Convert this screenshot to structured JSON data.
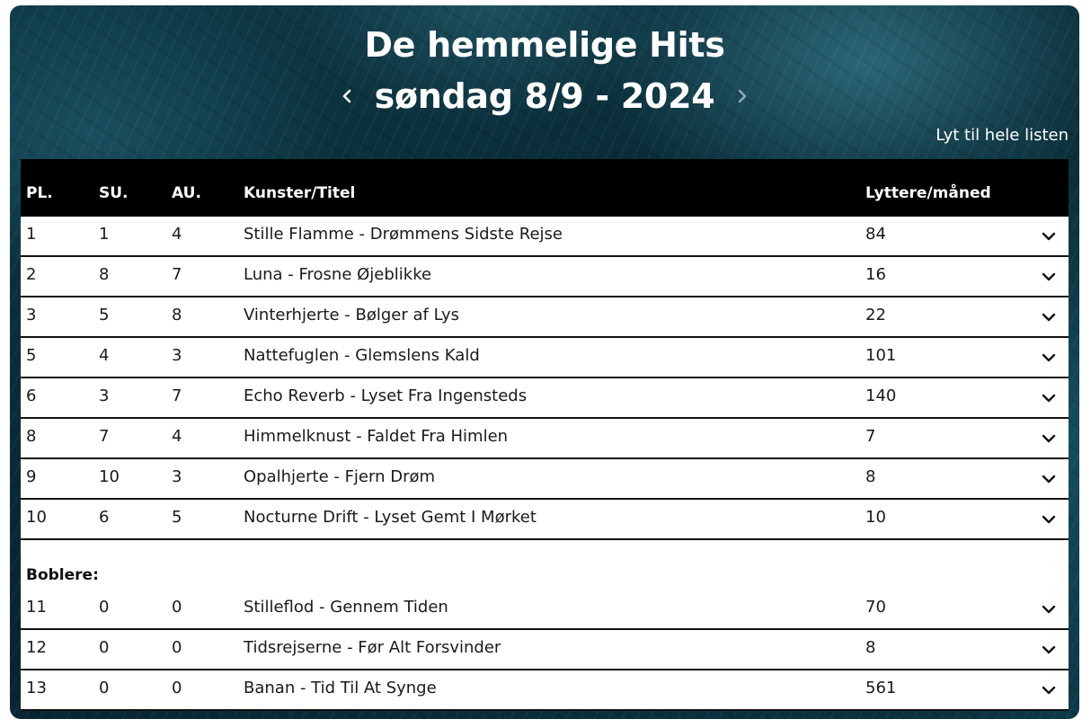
{
  "header": {
    "title": "De hemmelige Hits",
    "date": "søndag 8/9 - 2024",
    "listen_link": "Lyt til hele listen"
  },
  "colors": {
    "background_teal": "#0a2c38",
    "header_row": "#000000",
    "text": "#1a1a1a"
  },
  "icons": {
    "prev": "chevron-left-icon",
    "next": "chevron-right-icon",
    "expand": "chevron-down-icon"
  },
  "table": {
    "columns": {
      "pl": "PL.",
      "su": "SU.",
      "au": "AU.",
      "title": "Kunster/Titel",
      "listeners": "Lyttere/måned"
    },
    "rows": [
      {
        "pl": "1",
        "su": "1",
        "au": "4",
        "title": "Stille Flamme - Drømmens Sidste Rejse",
        "listeners": "84"
      },
      {
        "pl": "2",
        "su": "8",
        "au": "7",
        "title": "Luna - Frosne Øjeblikke",
        "listeners": "16"
      },
      {
        "pl": "3",
        "su": "5",
        "au": "8",
        "title": "Vinterhjerte - Bølger af Lys",
        "listeners": "22"
      },
      {
        "pl": "5",
        "su": "4",
        "au": "3",
        "title": "Nattefuglen - Glemslens Kald",
        "listeners": "101"
      },
      {
        "pl": "6",
        "su": "3",
        "au": "7",
        "title": "Echo Reverb - Lyset Fra Ingensteds",
        "listeners": "140"
      },
      {
        "pl": "8",
        "su": "7",
        "au": "4",
        "title": "Himmelknust - Faldet Fra Himlen",
        "listeners": "7"
      },
      {
        "pl": "9",
        "su": "10",
        "au": "3",
        "title": "Opalhjerte - Fjern Drøm",
        "listeners": "8"
      },
      {
        "pl": "10",
        "su": "6",
        "au": "5",
        "title": "Nocturne Drift - Lyset Gemt I Mørket",
        "listeners": "10"
      }
    ],
    "bubblers_label": "Boblere:",
    "bubblers": [
      {
        "pl": "11",
        "su": "0",
        "au": "0",
        "title": "Stilleflod - Gennem Tiden",
        "listeners": "70"
      },
      {
        "pl": "12",
        "su": "0",
        "au": "0",
        "title": "Tidsrejserne - Før Alt Forsvinder",
        "listeners": "8"
      },
      {
        "pl": "13",
        "su": "0",
        "au": "0",
        "title": "Banan - Tid Til At Synge",
        "listeners": "561"
      }
    ]
  }
}
